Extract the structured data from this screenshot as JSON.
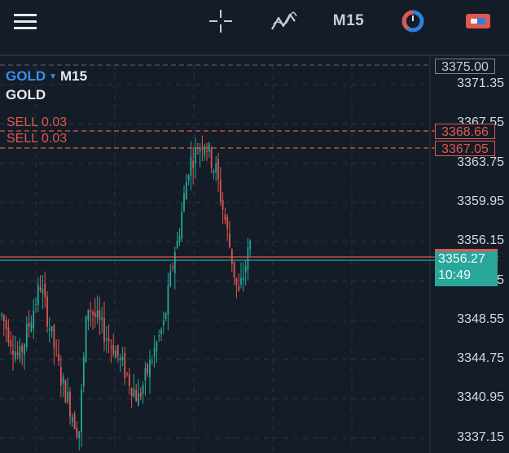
{
  "toolbar": {
    "menu_icon": "hamburger-menu-icon",
    "crosshair_icon": "crosshair-icon",
    "indicators_icon": "indicators-icon",
    "timeframe": "M15",
    "clock_icon": "clock-icon",
    "trade_icon": "trade-icon"
  },
  "chart": {
    "symbol": "GOLD",
    "timeframe": "M15",
    "subtitle": "GOLD",
    "orders": [
      {
        "label": "SELL 0.03",
        "price": 3368.66
      },
      {
        "label": "SELL 0.03",
        "price": 3367.05
      }
    ],
    "top_price_box": "3375.00",
    "order_price_boxes": [
      "3368.66",
      "3367.05"
    ],
    "bid_box": {
      "price": "3356.27",
      "countdown": "10:49"
    },
    "price_axis": [
      "3371.35",
      "3367.55",
      "3363.75",
      "3359.95",
      "3356.15",
      "3352.35",
      "3348.55",
      "3344.75",
      "3340.95",
      "3337.15"
    ],
    "colors": {
      "background": "#131c27",
      "bull": "#29a69a",
      "bear": "#e0574f",
      "accent": "#3a8ff0"
    }
  }
}
